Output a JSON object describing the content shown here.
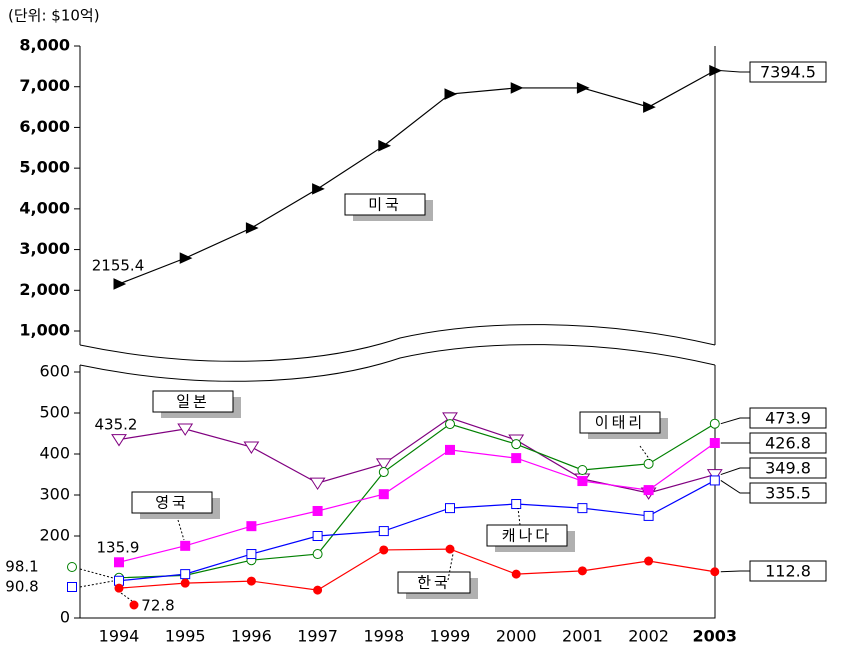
{
  "chart_data": [
    {
      "type": "line",
      "subtitle": "(단위: $10억)",
      "ylim": [
        1000,
        8000
      ],
      "yticks": [
        {
          "value": 1000,
          "label": "1,000"
        },
        {
          "value": 2000,
          "label": "2,000"
        },
        {
          "value": 3000,
          "label": "3,000"
        },
        {
          "value": 4000,
          "label": "4,000"
        },
        {
          "value": 5000,
          "label": "5,000"
        },
        {
          "value": 6000,
          "label": "6,000"
        },
        {
          "value": 7000,
          "label": "7,000"
        },
        {
          "value": 8000,
          "label": "8,000"
        }
      ],
      "series": [
        {
          "name": "미국",
          "color": "#000000",
          "marker": "triangle-right-filled",
          "values": [
            2155.4,
            2790,
            3530,
            4490,
            5550,
            6820,
            6970,
            6970,
            6500,
            7394.5
          ]
        }
      ]
    },
    {
      "type": "line",
      "categories": [
        "1994",
        "1995",
        "1996",
        "1997",
        "1998",
        "1999",
        "2000",
        "2001",
        "2002",
        "2003"
      ],
      "ylim": [
        0,
        600
      ],
      "yticks": [
        0,
        200,
        300,
        400,
        500,
        600
      ],
      "series": [
        {
          "name": "일본",
          "color": "#800080",
          "marker": "triangle-down-open",
          "values": [
            435.2,
            461,
            417,
            329,
            376,
            488,
            434,
            339,
            305,
            349.8
          ]
        },
        {
          "name": "이태리",
          "color": "#008000",
          "marker": "circle-open",
          "values": [
            98.1,
            104,
            141,
            156,
            356,
            473,
            424,
            361,
            376,
            473.9
          ]
        },
        {
          "name": "영국",
          "color": "#ff00ff",
          "marker": "square-filled",
          "values": [
            135.9,
            176,
            224,
            261,
            302,
            410,
            390,
            334,
            312,
            426.8
          ]
        },
        {
          "name": "캐나다",
          "color": "#0000ff",
          "marker": "square-open",
          "values": [
            90.8,
            107,
            156,
            200,
            212,
            268,
            278,
            268,
            249,
            335.5
          ]
        },
        {
          "name": "한국",
          "color": "#ff0000",
          "marker": "circle-filled",
          "values": [
            72.8,
            85,
            90,
            68,
            166,
            168,
            107,
            115,
            139,
            112.8
          ]
        }
      ]
    }
  ]
}
